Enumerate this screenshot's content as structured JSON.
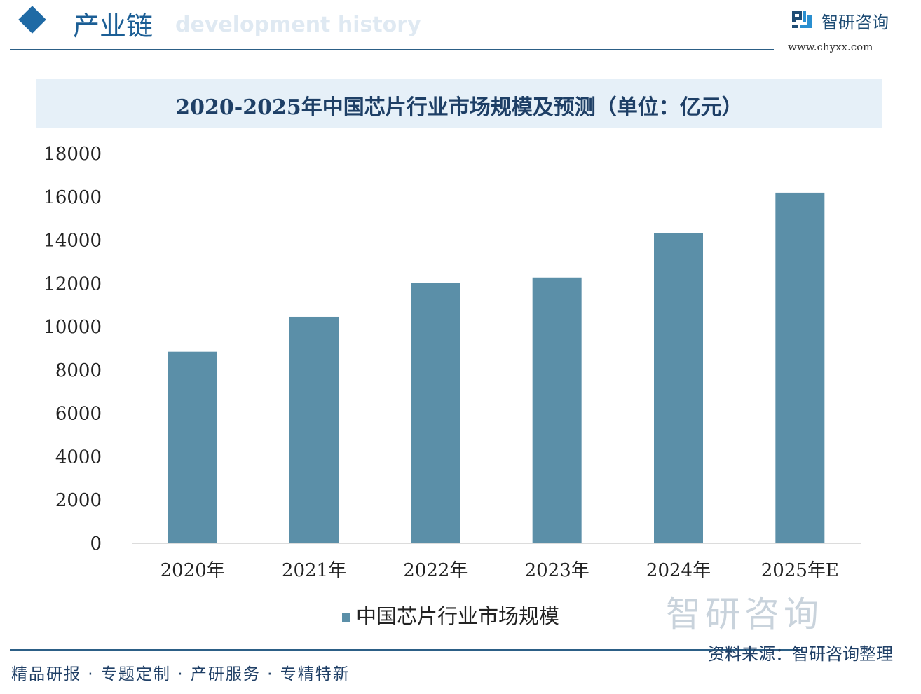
{
  "header": {
    "section": "产业链",
    "subtitle_en": "development history",
    "brand": "智研咨询",
    "url": "www.chyxx.com"
  },
  "footer": {
    "slogan": "精品研报 · 专题定制 · 产研服务 · 专精特新",
    "source": "资料来源：智研咨询整理",
    "watermark": "智研咨询"
  },
  "colors": {
    "bar": "#5b8fa8",
    "accent": "#1f6aa5",
    "title_band": "#e6f0f8"
  },
  "chart_data": {
    "type": "bar",
    "title": "2020-2025年中国芯片行业市场规模及预测（单位：亿元）",
    "categories": [
      "2020年",
      "2021年",
      "2022年",
      "2023年",
      "2024年",
      "2025年E"
    ],
    "series": [
      {
        "name": "中国芯片行业市场规模",
        "values": [
          8848,
          10458,
          12036,
          12277,
          14313,
          16190
        ]
      }
    ],
    "ylim": [
      0,
      18000
    ],
    "yticks": [
      "0",
      "2000",
      "4000",
      "6000",
      "8000",
      "10000",
      "12000",
      "14000",
      "16000",
      "18000"
    ],
    "grid": false,
    "legend": "bottom"
  }
}
